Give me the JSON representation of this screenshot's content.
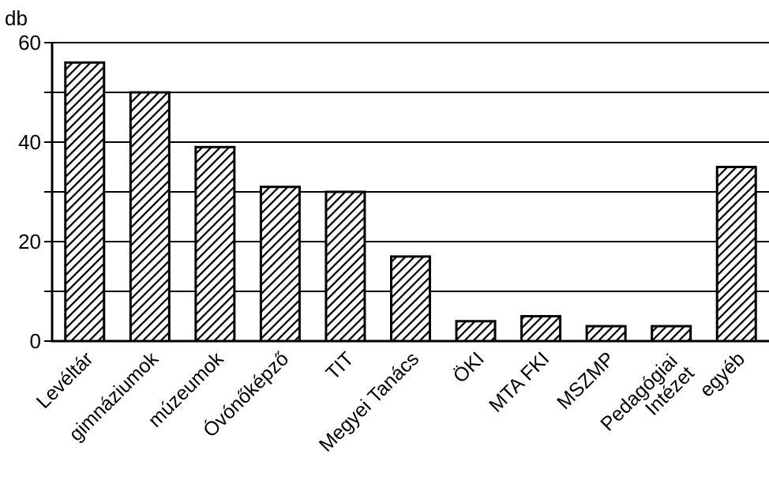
{
  "chart_data": {
    "type": "bar",
    "ylabel": "db",
    "ylim": [
      0,
      60
    ],
    "yticks": [
      0,
      20,
      40,
      60
    ],
    "grid": true,
    "fill": "diagonal-hatch",
    "colors": {
      "bar_stroke": "#000000",
      "hatch": "#000000",
      "background": "#ffffff"
    },
    "categories": [
      [
        "Levéltár"
      ],
      [
        "gimnáziumok"
      ],
      [
        "múzeumok"
      ],
      [
        "Óvónőképző"
      ],
      [
        "TIT"
      ],
      [
        "Megyei Tanács"
      ],
      [
        "ÖKI"
      ],
      [
        "MTA FKI"
      ],
      [
        "MSZMP"
      ],
      [
        "Pedagógiai",
        "Intézet"
      ],
      [
        "egyéb"
      ]
    ],
    "values": [
      56,
      50,
      39,
      31,
      30,
      17,
      4,
      5,
      3,
      3,
      35
    ]
  }
}
